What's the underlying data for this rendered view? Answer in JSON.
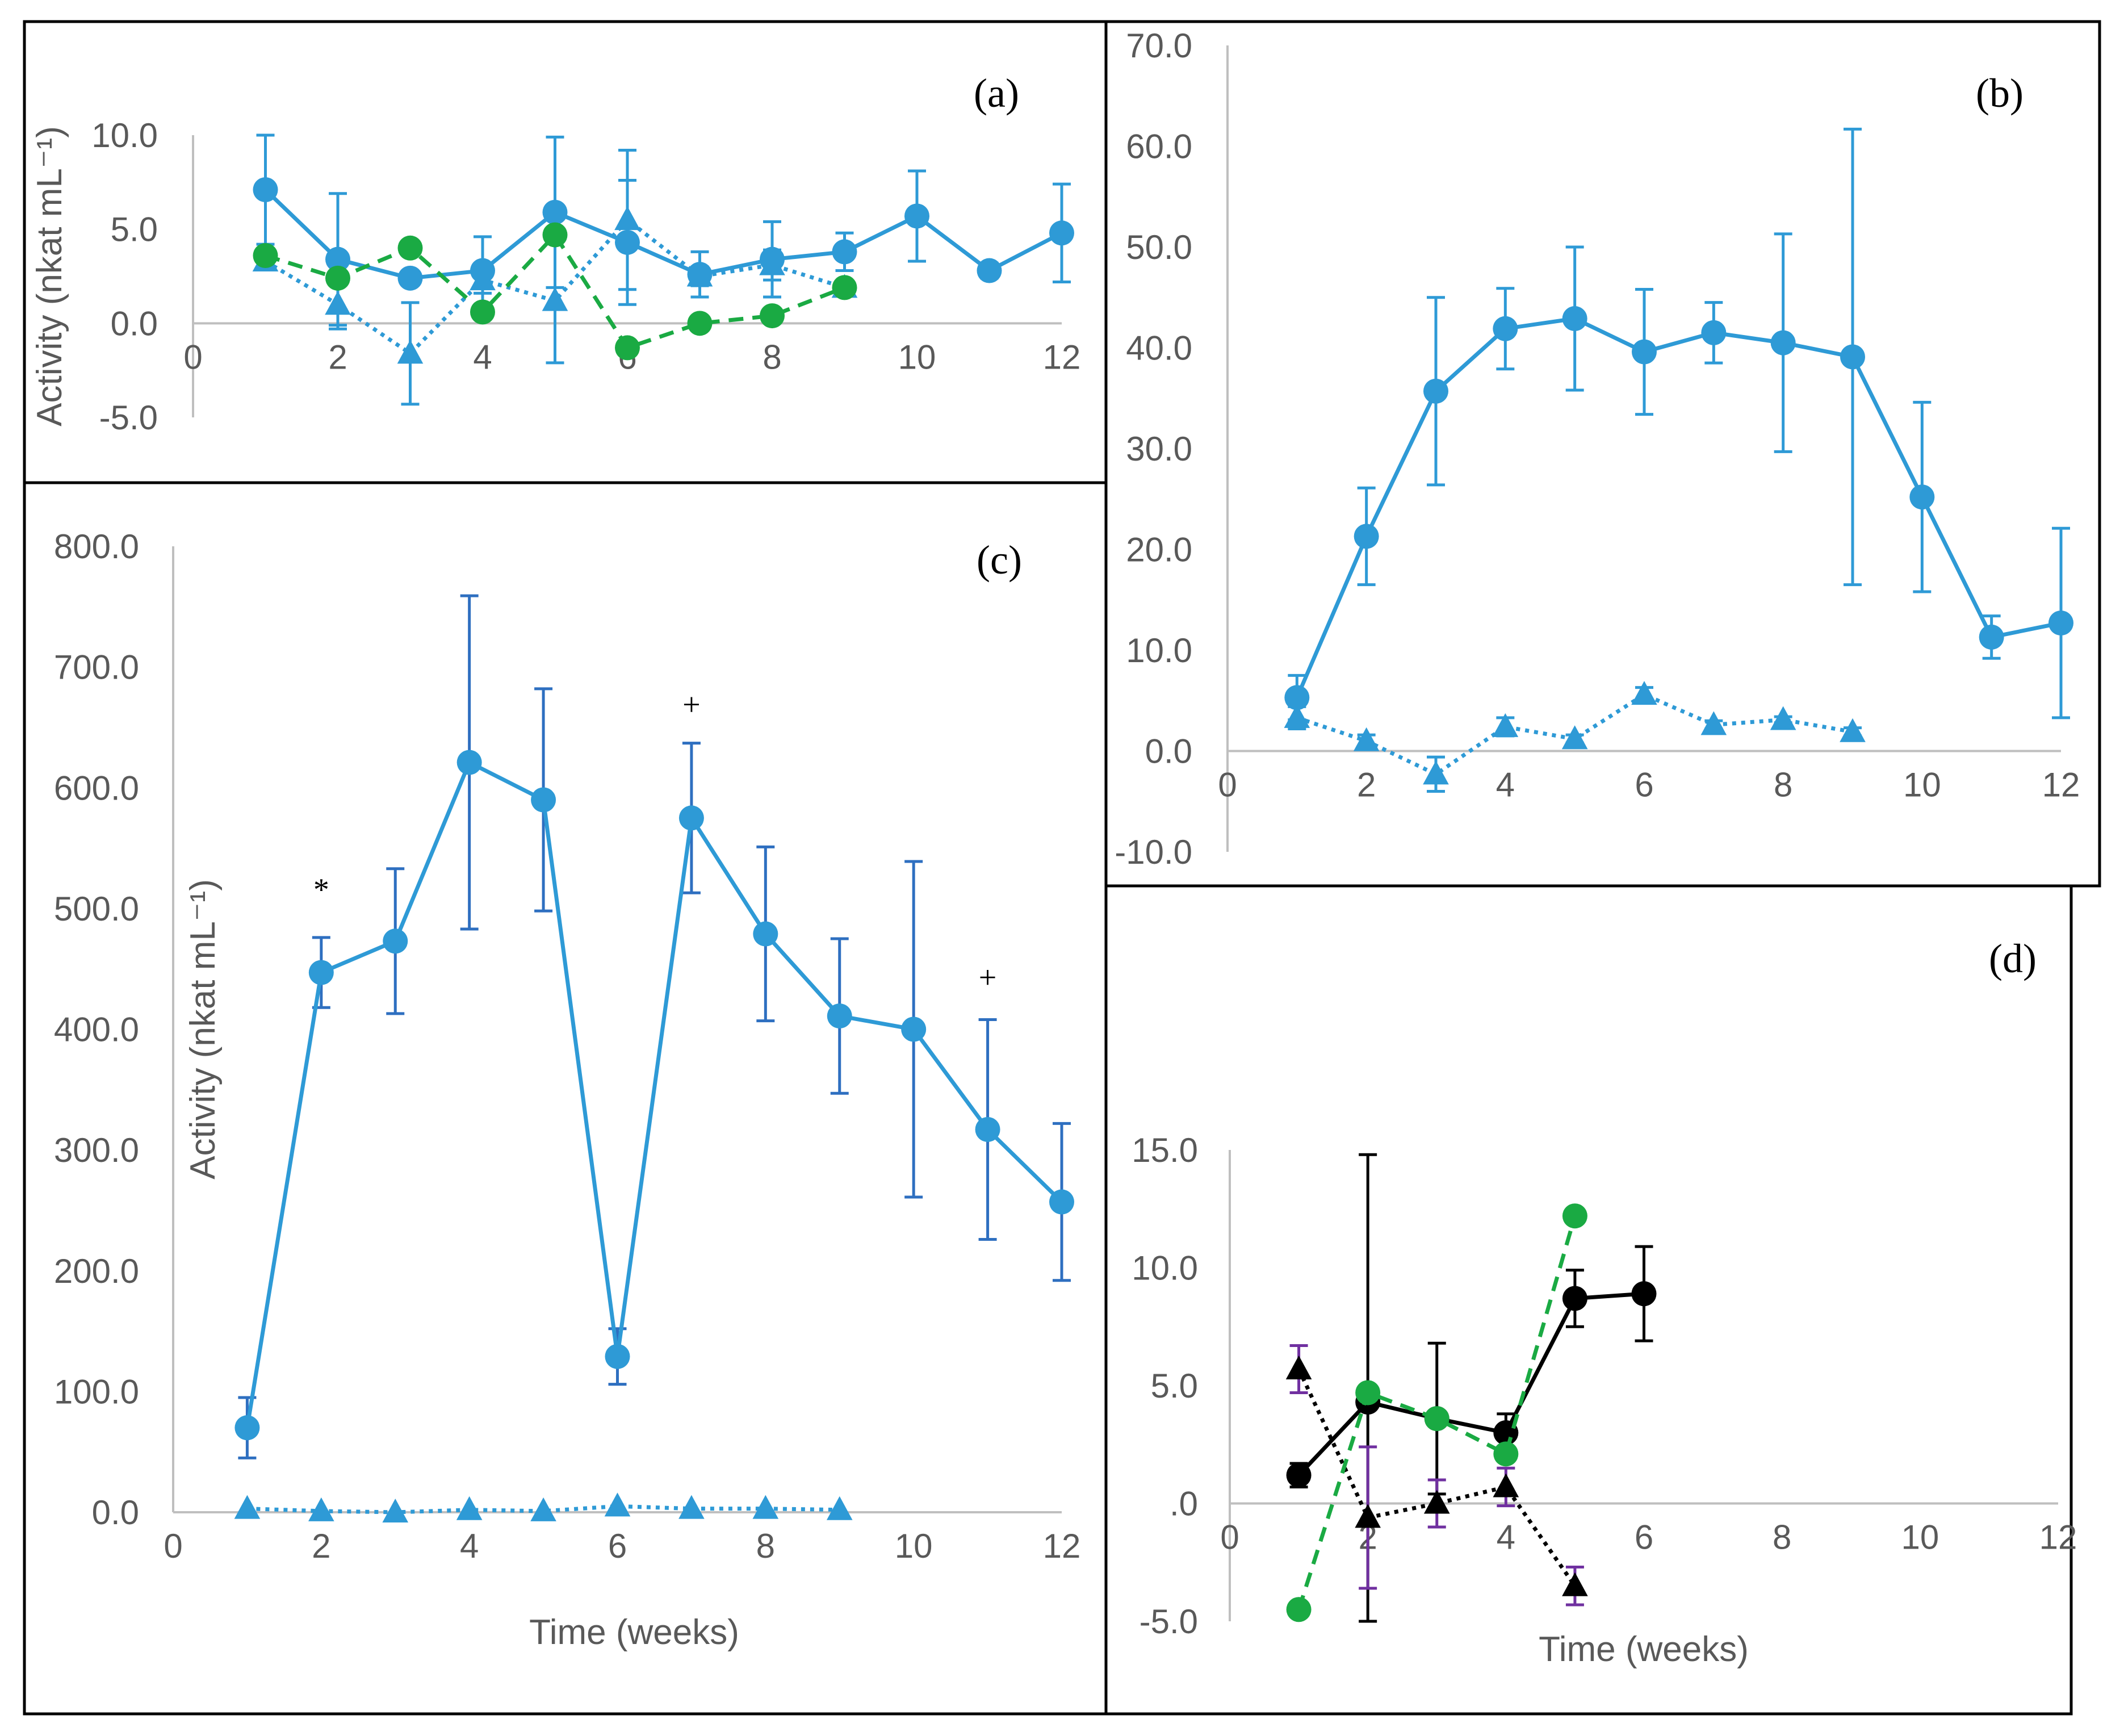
{
  "colors": {
    "blue": "#2e9ad6",
    "green": "#1aaa43",
    "black": "#000000",
    "purple": "#7030a0"
  },
  "chart_data": [
    {
      "id": "a",
      "type": "line",
      "panel_label": "(a)",
      "xlabel": "",
      "ylabel": "Activity (nkat mL⁻¹)",
      "xlim": [
        0,
        12
      ],
      "ylim": [
        -5,
        10
      ],
      "x_ticks": [
        "0",
        "2",
        "4",
        "6",
        "8",
        "10",
        "12"
      ],
      "y_ticks": [
        "10.0",
        "5.0",
        "0.0",
        "-5.0"
      ],
      "grid": false,
      "series": [
        {
          "marker": "circle",
          "line": "solid",
          "color": "#2e9ad6",
          "x": [
            1,
            2,
            3,
            4,
            5,
            6,
            7,
            8,
            9,
            10,
            11,
            12
          ],
          "y": [
            7.1,
            3.4,
            2.4,
            2.8,
            5.9,
            4.3,
            2.6,
            3.4,
            3.8,
            5.7,
            2.8,
            4.8
          ],
          "err": [
            2.9,
            3.5,
            0.2,
            1.8,
            4.0,
            3.3,
            1.2,
            2.0,
            1.0,
            2.4,
            0.4,
            2.6
          ]
        },
        {
          "marker": "triangle",
          "line": "dotted",
          "color": "#2e9ad6",
          "x": [
            1,
            2,
            3,
            4,
            5,
            6,
            7,
            8,
            9
          ],
          "y": [
            3.3,
            1.0,
            -1.6,
            2.3,
            1.2,
            5.5,
            2.5,
            3.1,
            1.9
          ],
          "err": [
            0.4,
            1.3,
            2.7,
            0.7,
            3.3,
            3.7,
            0.5,
            0.8,
            0.3
          ]
        },
        {
          "marker": "circle",
          "line": "dashed",
          "color": "#1aaa43",
          "x": [
            1,
            2,
            3,
            4,
            5,
            6,
            7,
            8,
            9
          ],
          "y": [
            3.6,
            2.4,
            4.0,
            0.6,
            4.7,
            -1.3,
            0.0,
            0.4,
            1.9
          ],
          "err": []
        }
      ],
      "annotations": []
    },
    {
      "id": "b",
      "type": "line",
      "panel_label": "(b)",
      "xlabel": "",
      "ylabel": "",
      "xlim": [
        0,
        12
      ],
      "ylim": [
        -10,
        70
      ],
      "x_ticks": [
        "0",
        "2",
        "4",
        "6",
        "8",
        "10",
        "12"
      ],
      "y_ticks": [
        "70.0",
        "60.0",
        "50.0",
        "40.0",
        "30.0",
        "20.0",
        "10.0",
        "0.0",
        "-10.0"
      ],
      "grid": false,
      "series": [
        {
          "marker": "circle",
          "line": "solid",
          "color": "#2e9ad6",
          "x": [
            1,
            2,
            3,
            4,
            5,
            6,
            7,
            8,
            9,
            10,
            11,
            12
          ],
          "y": [
            5.3,
            21.3,
            35.7,
            41.9,
            42.9,
            39.6,
            41.5,
            40.5,
            39.1,
            25.2,
            11.3,
            12.7
          ],
          "err": [
            2.2,
            4.8,
            9.3,
            4.0,
            7.1,
            6.2,
            3.0,
            10.8,
            22.6,
            9.4,
            2.1,
            9.4
          ]
        },
        {
          "marker": "triangle",
          "line": "dotted",
          "color": "#2e9ad6",
          "x": [
            1,
            2,
            3,
            4,
            5,
            6,
            7,
            8,
            9
          ],
          "y": [
            3.3,
            1.0,
            -2.3,
            2.4,
            1.2,
            5.6,
            2.6,
            3.1,
            1.9
          ],
          "err": [
            1.1,
            0.6,
            1.7,
            0.9,
            0.4,
            0.7,
            0.4,
            0.3,
            0.4
          ]
        }
      ],
      "annotations": []
    },
    {
      "id": "c",
      "type": "line",
      "panel_label": "(c)",
      "xlabel": "Time (weeks)",
      "ylabel": "Activity (nkat mL⁻¹)",
      "xlim": [
        0,
        12
      ],
      "ylim": [
        0,
        800
      ],
      "x_ticks": [
        "0",
        "2",
        "4",
        "6",
        "8",
        "10",
        "12"
      ],
      "y_ticks": [
        "800.0",
        "700.0",
        "600.0",
        "500.0",
        "400.0",
        "300.0",
        "200.0",
        "100.0",
        "0.0"
      ],
      "grid": false,
      "series": [
        {
          "marker": "circle",
          "line": "solid",
          "color": "#2e9ad6",
          "err_color": "#2e6fc0",
          "x": [
            1,
            2,
            3,
            4,
            5,
            6,
            7,
            8,
            9,
            10,
            11,
            12
          ],
          "y": [
            70,
            447,
            473,
            621,
            590,
            129,
            575,
            479,
            411,
            400,
            317,
            257
          ],
          "err": [
            25,
            29,
            60,
            138,
            92,
            23,
            62,
            72,
            64,
            139,
            91,
            65
          ]
        },
        {
          "marker": "triangle",
          "line": "dotted",
          "color": "#2e9ad6",
          "x": [
            1,
            2,
            3,
            4,
            5,
            6,
            7,
            8,
            9
          ],
          "y": [
            3,
            1,
            0,
            2,
            1,
            5,
            3,
            3,
            2
          ],
          "err": []
        }
      ],
      "annotations": [
        {
          "text": "*",
          "x": 2,
          "y": 507
        },
        {
          "text": "+",
          "x": 7,
          "y": 660
        },
        {
          "text": "+",
          "x": 11,
          "y": 434
        }
      ]
    },
    {
      "id": "d",
      "type": "line",
      "panel_label": "(d)",
      "xlabel": "Time (weeks)",
      "ylabel": "",
      "xlim": [
        0,
        12
      ],
      "ylim": [
        -5,
        15
      ],
      "x_ticks": [
        "0",
        "2",
        "4",
        "6",
        "8",
        "10",
        "12"
      ],
      "y_ticks": [
        "15.0",
        "10.0",
        "5.0",
        ".0",
        "-5.0"
      ],
      "grid": false,
      "series": [
        {
          "marker": "circle",
          "line": "solid",
          "color": "#000000",
          "x": [
            1,
            2,
            3,
            4,
            5,
            6
          ],
          "y": [
            1.2,
            4.3,
            3.6,
            3.0,
            8.7,
            8.9
          ],
          "err": [
            0.5,
            10.5,
            3.2,
            0.8,
            1.2,
            2.0
          ]
        },
        {
          "marker": "triangle",
          "line": "dotted",
          "color": "#000000",
          "err_color": "#7030a0",
          "x": [
            1,
            2,
            3,
            4,
            5
          ],
          "y": [
            5.7,
            -0.6,
            0.0,
            0.7,
            -3.5
          ],
          "err": [
            1.0,
            3.0,
            1.0,
            0.8,
            0.8
          ]
        },
        {
          "marker": "circle",
          "line": "dashed",
          "color": "#1aaa43",
          "x": [
            1,
            2,
            3,
            4,
            5
          ],
          "y": [
            -4.5,
            4.7,
            3.6,
            2.1,
            12.2
          ],
          "err": []
        }
      ],
      "annotations": []
    }
  ]
}
